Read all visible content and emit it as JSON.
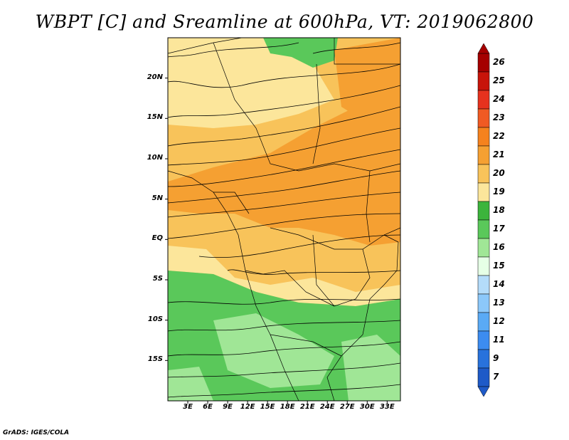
{
  "title": "WBPT [C] and Sreamline at 600hPa, VT: 2019062800",
  "credit": "GrADS: IGES/COLA",
  "map": {
    "lon_range": [
      0,
      35
    ],
    "lat_range": [
      -20,
      25
    ],
    "lat_ticks": [
      "20N",
      "15N",
      "10N",
      "5N",
      "EQ",
      "5S",
      "10S",
      "15S"
    ],
    "lon_ticks": [
      "3E",
      "6E",
      "9E",
      "12E",
      "15E",
      "18E",
      "21E",
      "24E",
      "27E",
      "30E",
      "33E"
    ]
  },
  "colorbar": {
    "labels": [
      "26",
      "25",
      "24",
      "23",
      "22",
      "21",
      "20",
      "19",
      "18",
      "17",
      "16",
      "15",
      "14",
      "13",
      "12",
      "11",
      "9",
      "7"
    ],
    "colors": [
      "#a50000",
      "#c8140a",
      "#e6321e",
      "#f05a23",
      "#f5821e",
      "#f5a032",
      "#f8c35a",
      "#fce69b",
      "#3cb43c",
      "#5ac85a",
      "#a0e696",
      "#e6ffe6",
      "#b4dcfa",
      "#8cc8fa",
      "#5aaaf5",
      "#3c8cf0",
      "#2872dc",
      "#1e5ac8"
    ]
  }
}
